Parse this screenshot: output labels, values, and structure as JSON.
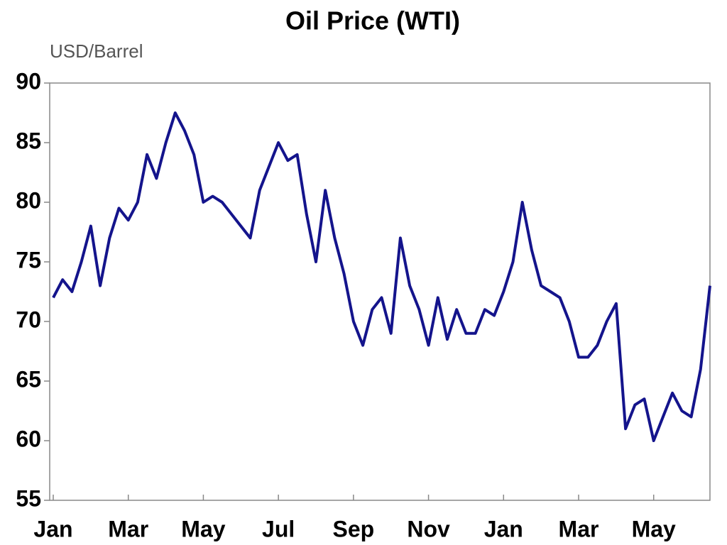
{
  "chart_data": {
    "type": "line",
    "title": "Oil Price (WTI)",
    "subtitle": "USD/Barrel",
    "categories": [
      "Jan",
      null,
      null,
      null,
      null,
      null,
      null,
      null,
      "Mar",
      null,
      null,
      null,
      null,
      null,
      null,
      null,
      "May",
      null,
      null,
      null,
      null,
      null,
      null,
      null,
      "Jul",
      null,
      null,
      null,
      null,
      null,
      null,
      null,
      "Sep",
      null,
      null,
      null,
      null,
      null,
      null,
      null,
      "Nov",
      null,
      null,
      null,
      null,
      null,
      null,
      null,
      "Jan",
      null,
      null,
      null,
      null,
      null,
      null,
      null,
      "Mar",
      null,
      null,
      null,
      null,
      null,
      null,
      null,
      "May",
      null,
      null,
      null,
      null,
      null,
      null
    ],
    "values": [
      72,
      73.5,
      72.5,
      75,
      78,
      73,
      77,
      79.5,
      78.5,
      80,
      84,
      82,
      85,
      87.5,
      86,
      84,
      80,
      80.5,
      80,
      79,
      78,
      77,
      81,
      83,
      85,
      83.5,
      84,
      79,
      75,
      81,
      77,
      74,
      70,
      68,
      71,
      72,
      69,
      77,
      73,
      71,
      68,
      72,
      68.5,
      71,
      69,
      69,
      71,
      70.5,
      72.5,
      75,
      80,
      76,
      73,
      72.5,
      72,
      70,
      67,
      67,
      68,
      70,
      71.5,
      61,
      63,
      63.5,
      60,
      62,
      64,
      62.5,
      62,
      66,
      73
    ],
    "color": "#14148c",
    "ylim": [
      55,
      90
    ],
    "yticks": [
      55,
      60,
      65,
      70,
      75,
      80,
      85,
      90
    ]
  }
}
